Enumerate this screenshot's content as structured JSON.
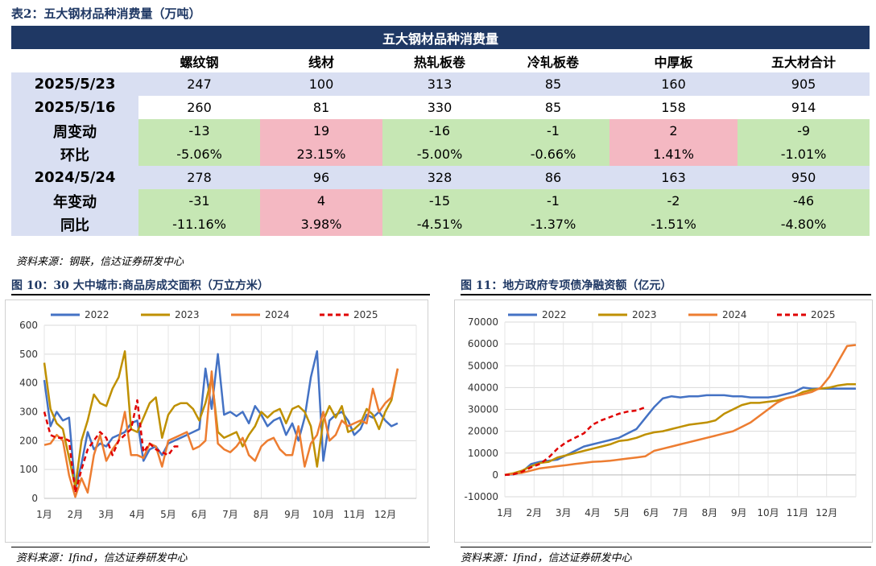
{
  "table_caption": "表2：五大钢材品种消费量（万吨）",
  "table": {
    "title": "五大钢材品种消费量",
    "columns": [
      "",
      "螺纹钢",
      "线材",
      "热轧板卷",
      "冷轧板卷",
      "中厚板",
      "五大材合计"
    ],
    "rows": [
      {
        "label": "2025/5/23",
        "values": [
          "247",
          "100",
          "313",
          "85",
          "160",
          "905"
        ],
        "colors": [
          "b",
          "b",
          "b",
          "b",
          "b",
          "b"
        ],
        "label_bg": "b"
      },
      {
        "label": "2025/5/16",
        "values": [
          "260",
          "81",
          "330",
          "85",
          "158",
          "914"
        ],
        "colors": [
          "w",
          "w",
          "w",
          "w",
          "w",
          "w"
        ],
        "label_bg": "w"
      },
      {
        "label": "周变动",
        "values": [
          "-13",
          "19",
          "-16",
          "-1",
          "2",
          "-9"
        ],
        "colors": [
          "g",
          "r",
          "g",
          "g",
          "r",
          "g"
        ],
        "label_bg": "b"
      },
      {
        "label": "环比",
        "values": [
          "-5.06%",
          "23.15%",
          "-5.00%",
          "-0.66%",
          "1.41%",
          "-1.01%"
        ],
        "colors": [
          "g",
          "r",
          "g",
          "g",
          "r",
          "g"
        ],
        "label_bg": "w"
      },
      {
        "label": "2024/5/24",
        "values": [
          "278",
          "96",
          "328",
          "86",
          "163",
          "950"
        ],
        "colors": [
          "b",
          "b",
          "b",
          "b",
          "b",
          "b"
        ],
        "label_bg": "b"
      },
      {
        "label": "年变动",
        "values": [
          "-31",
          "4",
          "-15",
          "-1",
          "-2",
          "-46"
        ],
        "colors": [
          "g",
          "r",
          "g",
          "g",
          "g",
          "g"
        ],
        "label_bg": "w"
      },
      {
        "label": "同比",
        "values": [
          "-11.16%",
          "3.98%",
          "-4.51%",
          "-1.37%",
          "-1.51%",
          "-4.80%"
        ],
        "colors": [
          "g",
          "r",
          "g",
          "g",
          "g",
          "g"
        ],
        "label_bg": "b"
      }
    ],
    "source": "资料来源：钢联，信达证券研发中心"
  },
  "colors": {
    "2022": "#4472c4",
    "2023": "#bf9000",
    "2024": "#ed7d31",
    "2025": "#e00000"
  },
  "chart_data": [
    {
      "caption": "图 10：30 大中城市:商品房成交面积（万立方米）",
      "type": "line",
      "xlabels": [
        "1月",
        "2月",
        "3月",
        "4月",
        "5月",
        "6月",
        "7月",
        "8月",
        "9月",
        "10月",
        "11月",
        "12月"
      ],
      "ylim": [
        0,
        600
      ],
      "yticks": [
        0,
        100,
        200,
        300,
        400,
        500,
        600
      ],
      "series": [
        {
          "name": "2022",
          "x": [
            1,
            1.2,
            1.4,
            1.6,
            1.8,
            2,
            2.2,
            2.4,
            2.6,
            2.8,
            3,
            3.2,
            3.4,
            3.6,
            3.8,
            4,
            4.2,
            4.4,
            4.6,
            4.8,
            5,
            5.2,
            5.4,
            5.6,
            5.8,
            6,
            6.2,
            6.4,
            6.6,
            6.8,
            7,
            7.2,
            7.4,
            7.6,
            7.8,
            8,
            8.2,
            8.4,
            8.6,
            8.8,
            9,
            9.2,
            9.4,
            9.6,
            9.8,
            10,
            10.2,
            10.4,
            10.6,
            10.8,
            11,
            11.2,
            11.4,
            11.6,
            11.8,
            12,
            12.2,
            12.4
          ],
          "y": [
            410,
            250,
            300,
            270,
            280,
            30,
            120,
            230,
            170,
            190,
            180,
            210,
            220,
            230,
            260,
            270,
            130,
            170,
            180,
            150,
            190,
            200,
            210,
            220,
            230,
            240,
            450,
            310,
            500,
            290,
            300,
            285,
            300,
            260,
            320,
            290,
            250,
            270,
            280,
            220,
            260,
            200,
            280,
            420,
            510,
            130,
            270,
            290,
            300,
            270,
            220,
            240,
            290,
            280,
            300,
            270,
            250,
            260
          ]
        },
        {
          "name": "2023",
          "x": [
            1,
            1.2,
            1.4,
            1.6,
            1.8,
            2,
            2.2,
            2.4,
            2.6,
            2.8,
            3,
            3.2,
            3.4,
            3.6,
            3.8,
            4,
            4.2,
            4.4,
            4.6,
            4.8,
            5,
            5.2,
            5.4,
            5.6,
            5.8,
            6,
            6.2,
            6.4,
            6.6,
            6.8,
            7,
            7.2,
            7.4,
            7.6,
            7.8,
            8,
            8.2,
            8.4,
            8.6,
            8.8,
            9,
            9.2,
            9.4,
            9.6,
            9.8,
            10,
            10.2,
            10.4,
            10.6,
            10.8,
            11,
            11.2,
            11.4,
            11.6,
            11.8,
            12,
            12.2,
            12.4
          ],
          "y": [
            470,
            310,
            260,
            240,
            140,
            40,
            200,
            270,
            360,
            330,
            320,
            380,
            420,
            510,
            240,
            230,
            280,
            330,
            350,
            210,
            290,
            320,
            330,
            330,
            310,
            270,
            330,
            420,
            230,
            210,
            220,
            230,
            180,
            220,
            250,
            300,
            280,
            300,
            310,
            260,
            310,
            320,
            300,
            250,
            110,
            270,
            320,
            280,
            320,
            230,
            240,
            260,
            310,
            290,
            240,
            300,
            340,
            450
          ]
        },
        {
          "name": "2024",
          "x": [
            1,
            1.2,
            1.4,
            1.6,
            1.8,
            2,
            2.2,
            2.4,
            2.6,
            2.8,
            3,
            3.2,
            3.4,
            3.6,
            3.8,
            4,
            4.2,
            4.4,
            4.6,
            4.8,
            5,
            5.2,
            5.4,
            5.6,
            5.8,
            6,
            6.2,
            6.4,
            6.6,
            6.8,
            7,
            7.2,
            7.4,
            7.6,
            7.8,
            8,
            8.2,
            8.4,
            8.6,
            8.8,
            9,
            9.2,
            9.4,
            9.6,
            9.8,
            10,
            10.2,
            10.4,
            10.6,
            10.8,
            11,
            11.2,
            11.4,
            11.6,
            11.8,
            12,
            12.2,
            12.4
          ],
          "y": [
            185,
            190,
            220,
            200,
            80,
            5,
            70,
            20,
            150,
            220,
            130,
            170,
            200,
            300,
            150,
            150,
            140,
            190,
            180,
            110,
            200,
            210,
            220,
            230,
            170,
            180,
            200,
            440,
            190,
            170,
            160,
            180,
            210,
            150,
            130,
            180,
            200,
            210,
            170,
            150,
            150,
            250,
            110,
            190,
            220,
            300,
            200,
            220,
            270,
            250,
            260,
            270,
            260,
            380,
            300,
            330,
            350,
            450
          ]
        },
        {
          "name": "2025",
          "x": [
            1,
            1.2,
            1.4,
            1.6,
            1.8,
            2,
            2.2,
            2.4,
            2.6,
            2.8,
            3,
            3.2,
            3.4,
            3.6,
            3.8,
            4,
            4.2,
            4.4,
            4.6,
            4.8,
            5,
            5.2,
            5.4
          ],
          "y": [
            300,
            220,
            210,
            210,
            200,
            20,
            100,
            170,
            200,
            230,
            210,
            150,
            200,
            220,
            240,
            340,
            160,
            190,
            170,
            160,
            150,
            180,
            180
          ]
        }
      ],
      "source": "资料来源：Ifind，信达证券研发中心"
    },
    {
      "caption": "图 11：地方政府专项债净融资额（亿元）",
      "type": "line",
      "xlabels": [
        "1月",
        "2月",
        "3月",
        "4月",
        "5月",
        "6月",
        "7月",
        "8月",
        "9月",
        "10月",
        "11月",
        "12月"
      ],
      "ylim": [
        -10000,
        70000
      ],
      "yticks": [
        -10000,
        0,
        10000,
        20000,
        30000,
        40000,
        50000,
        60000,
        70000
      ],
      "series": [
        {
          "name": "2022",
          "x": [
            1,
            1.3,
            1.6,
            1.9,
            2.2,
            2.5,
            2.8,
            3.1,
            3.4,
            3.7,
            4,
            4.3,
            4.6,
            4.9,
            5.2,
            5.5,
            5.8,
            6.1,
            6.4,
            6.7,
            7,
            7.3,
            7.6,
            7.9,
            8.2,
            8.5,
            8.8,
            9.1,
            9.4,
            9.7,
            10,
            10.3,
            10.6,
            10.9,
            11.2,
            11.5,
            11.8,
            12.1,
            12.4,
            12.7,
            13
          ],
          "y": [
            0,
            300,
            1500,
            5000,
            6000,
            6500,
            7000,
            9000,
            11000,
            13000,
            14000,
            15000,
            16000,
            17000,
            19000,
            21000,
            26000,
            31000,
            35000,
            36000,
            35500,
            36000,
            36000,
            36500,
            36500,
            36500,
            36000,
            36000,
            35500,
            35500,
            35500,
            36000,
            37000,
            38000,
            40000,
            39500,
            39500,
            39500,
            39500,
            39500,
            39500
          ]
        },
        {
          "name": "2023",
          "x": [
            1,
            1.3,
            1.6,
            1.9,
            2.2,
            2.5,
            2.8,
            3.1,
            3.4,
            3.7,
            4,
            4.3,
            4.6,
            4.9,
            5.2,
            5.5,
            5.8,
            6.1,
            6.4,
            6.7,
            7,
            7.3,
            7.6,
            7.9,
            8.2,
            8.5,
            8.8,
            9.1,
            9.4,
            9.7,
            10,
            10.3,
            10.6,
            10.9,
            11.2,
            11.5,
            11.8,
            12.1,
            12.4,
            12.7,
            13
          ],
          "y": [
            0,
            800,
            2000,
            4000,
            5500,
            6000,
            8000,
            9000,
            10000,
            11000,
            12000,
            13000,
            14000,
            15500,
            16000,
            17000,
            18500,
            19500,
            20000,
            21000,
            22000,
            23000,
            23500,
            24000,
            25000,
            28000,
            30000,
            32000,
            33000,
            33000,
            33500,
            34000,
            35000,
            36000,
            38000,
            39000,
            39500,
            40000,
            41000,
            41500,
            41500
          ]
        },
        {
          "name": "2024",
          "x": [
            1,
            1.3,
            1.6,
            1.9,
            2.2,
            2.5,
            2.8,
            3.1,
            3.4,
            3.7,
            4,
            4.3,
            4.6,
            4.9,
            5.2,
            5.5,
            5.8,
            6.1,
            6.4,
            6.7,
            7,
            7.3,
            7.6,
            7.9,
            8.2,
            8.5,
            8.8,
            9.1,
            9.4,
            9.7,
            10,
            10.3,
            10.6,
            10.9,
            11.2,
            11.5,
            11.8,
            12.1,
            12.4,
            12.7,
            13
          ],
          "y": [
            0,
            500,
            1000,
            2000,
            3000,
            3500,
            4000,
            4500,
            5000,
            5500,
            6000,
            6200,
            6500,
            7000,
            7500,
            8000,
            8500,
            11000,
            12000,
            13000,
            14000,
            15000,
            16000,
            17000,
            18000,
            19000,
            20000,
            22000,
            24000,
            27000,
            30000,
            33000,
            35000,
            36000,
            37000,
            38000,
            40000,
            45000,
            52000,
            59000,
            59500
          ]
        },
        {
          "name": "2025",
          "x": [
            1,
            1.3,
            1.6,
            1.9,
            2.2,
            2.5,
            2.8,
            3.1,
            3.4,
            3.7,
            4,
            4.3,
            4.6,
            4.9,
            5.2,
            5.5,
            5.8
          ],
          "y": [
            0,
            300,
            1500,
            3500,
            5000,
            8000,
            12000,
            15000,
            17000,
            19000,
            23000,
            25000,
            26500,
            28000,
            29000,
            29500,
            31000
          ]
        }
      ],
      "source": "资料来源：Ifind，信达证券研发中心"
    }
  ]
}
